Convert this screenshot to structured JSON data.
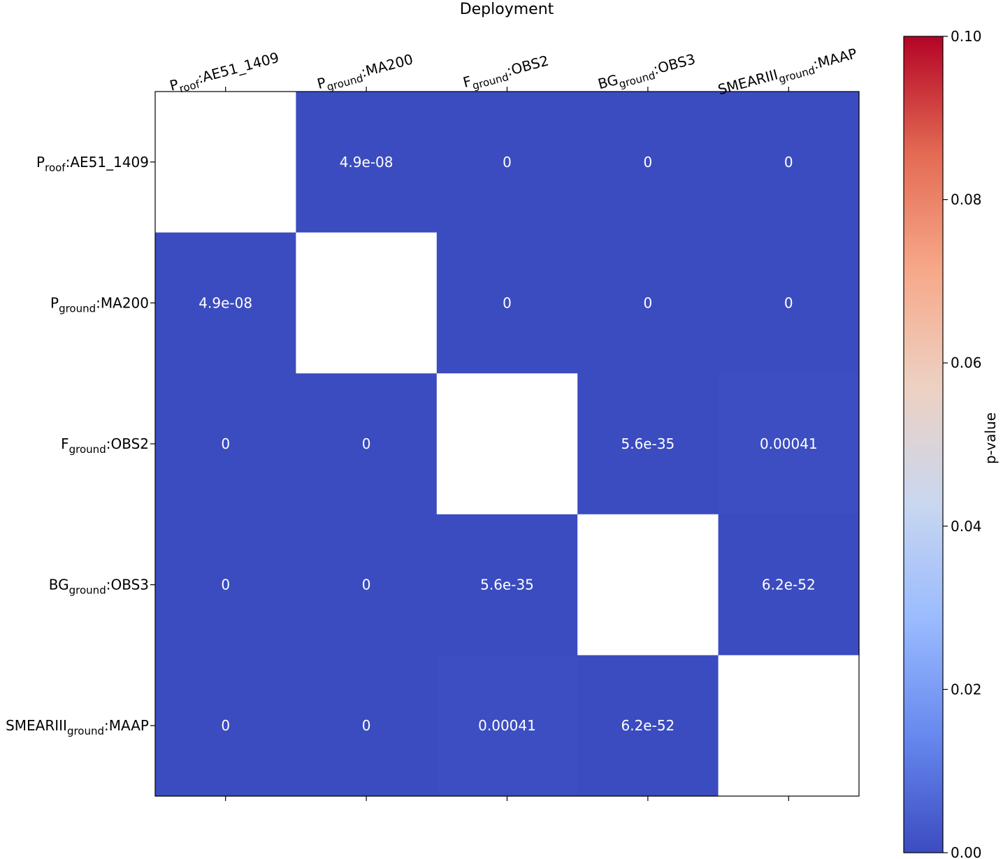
{
  "chart_data": {
    "type": "heatmap",
    "title": "Deployment",
    "colorbar_label": "p-value",
    "colormap": "coolwarm",
    "vmin": 0,
    "vmax": 0.1,
    "colorbar_ticks": [
      "0.00",
      "0.02",
      "0.04",
      "0.06",
      "0.08",
      "0.10"
    ],
    "colorbar_tick_values": [
      0,
      0.02,
      0.04,
      0.06,
      0.08,
      0.1
    ],
    "labels": [
      {
        "base": "P",
        "sub": "roof",
        "suffix": ":AE51_1409"
      },
      {
        "base": "P",
        "sub": "ground",
        "suffix": ":MA200"
      },
      {
        "base": "F",
        "sub": "ground",
        "suffix": ":OBS2"
      },
      {
        "base": "BG",
        "sub": "ground",
        "suffix": ":OBS3"
      },
      {
        "base": "SMEARIII",
        "sub": "ground",
        "suffix": ":MAAP"
      }
    ],
    "values": [
      [
        null,
        4.9e-08,
        0,
        0,
        0
      ],
      [
        4.9e-08,
        null,
        0,
        0,
        0
      ],
      [
        0,
        0,
        null,
        5.6e-35,
        0.00041
      ],
      [
        0,
        0,
        5.6e-35,
        null,
        6.2e-52
      ],
      [
        0,
        0,
        0.00041,
        6.2e-52,
        null
      ]
    ],
    "annotations": [
      [
        "",
        "4.9e-08",
        "0",
        "0",
        "0"
      ],
      [
        "4.9e-08",
        "",
        "0",
        "0",
        "0"
      ],
      [
        "0",
        "0",
        "",
        "5.6e-35",
        "0.00041"
      ],
      [
        "0",
        "0",
        "5.6e-35",
        "",
        "6.2e-52"
      ],
      [
        "0",
        "0",
        "0.00041",
        "6.2e-52",
        ""
      ]
    ],
    "colors": {
      "cell_low": "#3b4cc0",
      "diagonal": "#ffffff",
      "annotation_text": "#ffffff",
      "axis": "#000000"
    },
    "colorbar_stops": [
      "#3b4cc0",
      "#6788ee",
      "#9abbff",
      "#c9d7f0",
      "#edd1c2",
      "#f7a889",
      "#e36a53",
      "#b40426"
    ]
  }
}
